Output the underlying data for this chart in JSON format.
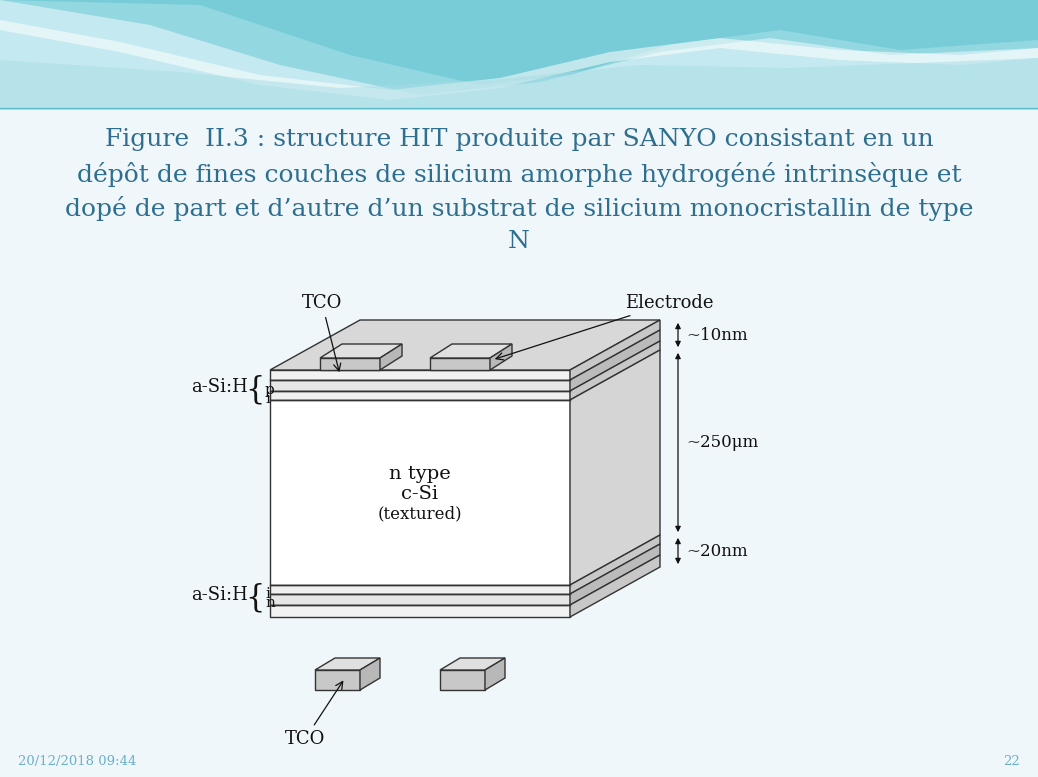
{
  "title_line1": "Figure  II.3 : structure HIT produite par SANYO consistant en un",
  "title_line2": "dépôt de fines couches de silicium amorphe hydrogéné intrinsèque et",
  "title_line3": "dopé de part et d’autre d’un substrat de silicium monocristallin de type",
  "title_line4": "N",
  "title_color": "#2e6e8e",
  "bg_color": "#f0f7fa",
  "footer_date": "20/12/2018 09:44",
  "footer_page": "22",
  "footer_color": "#6ab0c8",
  "wave_color1": "#7ecfd8",
  "wave_color2": "#a8dde6",
  "wave_color3": "#c8edf2",
  "diagram_ec": "#333333",
  "diagram_lw": 1.0
}
